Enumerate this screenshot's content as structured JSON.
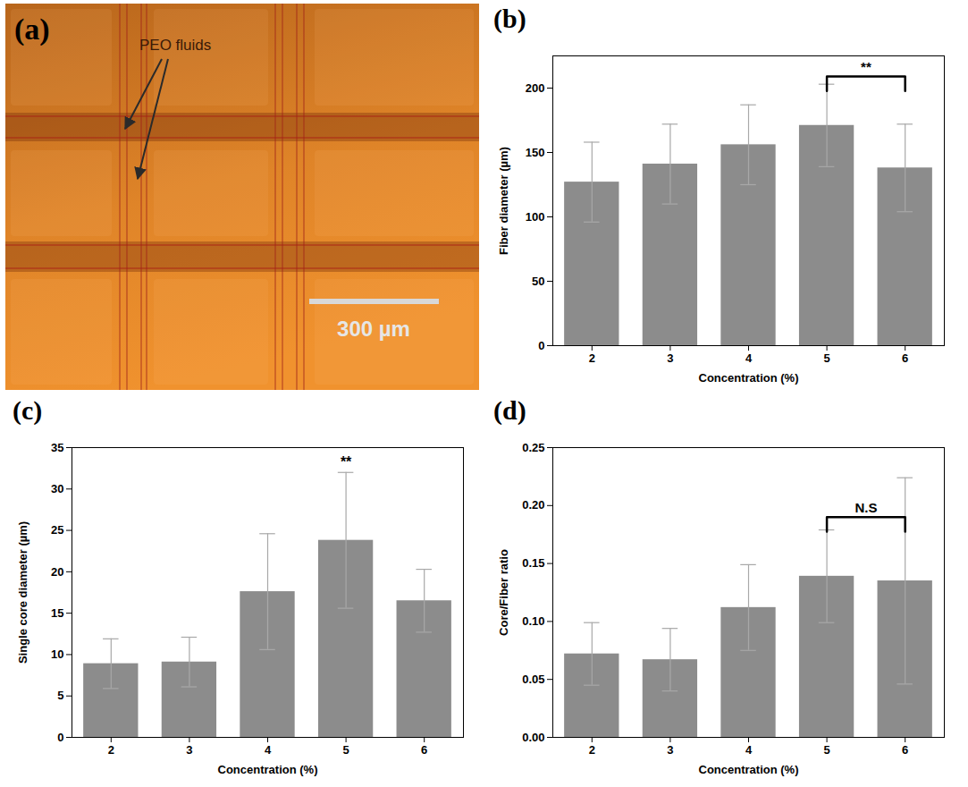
{
  "image": {
    "title": "(a)",
    "annotation": "PEO fluids",
    "scale_bar": "300 µm"
  },
  "chart_data": [
    {
      "type": "bar",
      "title": "(b)",
      "x_label": "Concentration (%)",
      "y_label": "Fiber diameter (µm)",
      "x": [
        2,
        3,
        4,
        5,
        6
      ],
      "values": [
        127,
        141,
        156,
        171,
        138
      ],
      "errors": [
        31,
        31,
        31,
        32,
        34
      ],
      "color": "#8c8c8c",
      "xlim": [
        1.5,
        6.5
      ],
      "xticks": [
        2,
        3,
        4,
        5,
        6
      ],
      "ylim": [
        0,
        225
      ],
      "yticks": [
        0,
        50,
        100,
        150,
        200
      ],
      "annotations": [
        {
          "text": "**",
          "x1": 5,
          "x2": 6,
          "y": 209
        }
      ]
    },
    {
      "type": "bar",
      "title": "(c)",
      "x_label": "Concentration (%)",
      "y_label": "Single core diameter (µm)",
      "x": [
        2,
        3,
        4,
        5,
        6
      ],
      "values": [
        8.9,
        9.1,
        17.6,
        23.8,
        16.5
      ],
      "errors": [
        3.0,
        3.0,
        7.0,
        8.2,
        3.8
      ],
      "color": "#8c8c8c",
      "xlim": [
        1.5,
        6.5
      ],
      "xticks": [
        2,
        3,
        4,
        5,
        6
      ],
      "ylim": [
        0,
        35
      ],
      "yticks": [
        0,
        5,
        10,
        15,
        20,
        25,
        30,
        35
      ],
      "annotations": [
        {
          "text": "**",
          "x": 5,
          "y": 33
        }
      ]
    },
    {
      "type": "bar",
      "title": "(d)",
      "x_label": "Concentration (%)",
      "y_label": "Core/Fiber ratio",
      "x": [
        2,
        3,
        4,
        5,
        6
      ],
      "values": [
        0.072,
        0.067,
        0.112,
        0.139,
        0.135
      ],
      "errors": [
        0.027,
        0.027,
        0.037,
        0.04,
        0.089
      ],
      "color": "#8c8c8c",
      "xlim": [
        1.5,
        6.5
      ],
      "xticks": [
        2,
        3,
        4,
        5,
        6
      ],
      "ylim": [
        0,
        0.25
      ],
      "yticks": [
        {
          "value": 0,
          "label": "0.00"
        },
        {
          "value": 0.05,
          "label": "0.05"
        },
        {
          "value": 0.1,
          "label": "0.10"
        },
        {
          "value": 0.15,
          "label": "0.15"
        },
        {
          "value": 0.2,
          "label": "0.20"
        },
        {
          "value": 0.25,
          "label": "0.25"
        }
      ],
      "annotations": [
        {
          "text": "N.S",
          "x1": 5,
          "x2": 6,
          "y": 0.19
        }
      ]
    }
  ]
}
